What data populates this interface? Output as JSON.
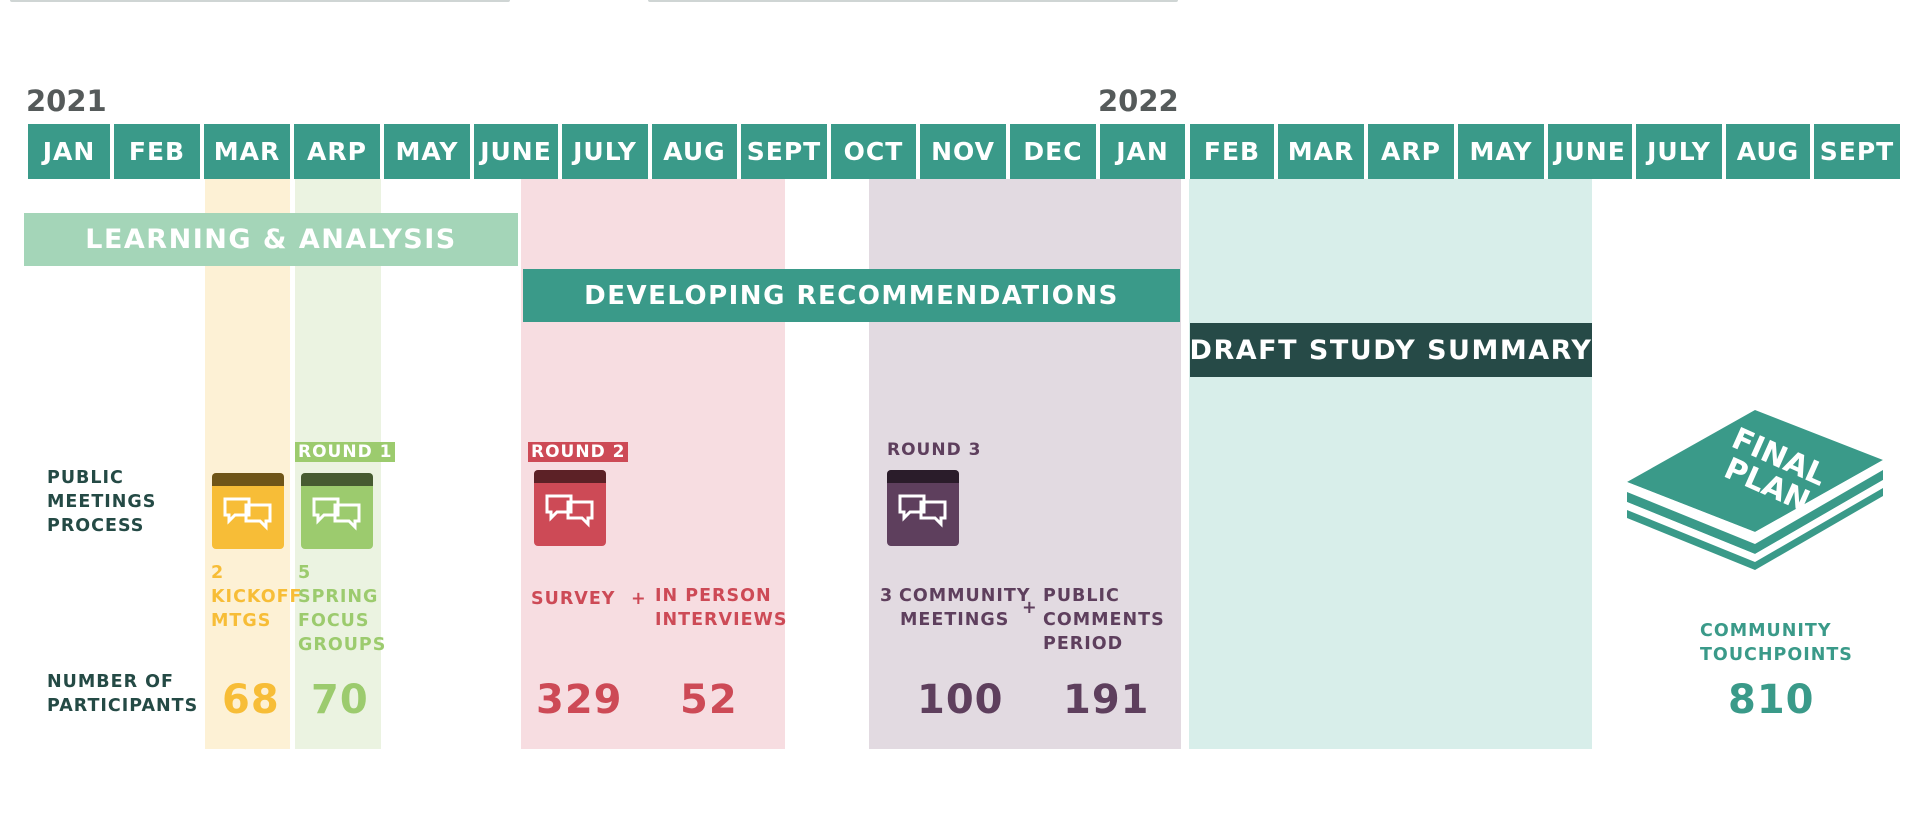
{
  "years": {
    "first": "2021",
    "second": "2022"
  },
  "months": [
    "JAN",
    "FEB",
    "MAR",
    "ARP",
    "MAY",
    "JUNE",
    "JULY",
    "AUG",
    "SEPT",
    "OCT",
    "NOV",
    "DEC",
    "JAN",
    "FEB",
    "MAR",
    "ARP",
    "MAY",
    "JUNE",
    "JULY",
    "AUG",
    "SEPT"
  ],
  "phases": {
    "learning": "LEARNING & ANALYSIS",
    "developing": "DEVELOPING RECOMMENDATIONS",
    "draft": "DRAFT STUDY SUMMARY"
  },
  "row_labels": {
    "process": [
      "PUBLIC",
      "MEETINGS",
      "PROCESS"
    ],
    "participants": [
      "NUMBER OF",
      "PARTICIPANTS"
    ]
  },
  "rounds": {
    "round1": "ROUND 1",
    "round2": "ROUND 2",
    "round3": "ROUND 3"
  },
  "events": {
    "kickoff": {
      "lines": [
        "2",
        "KICKOFF",
        "MTGS"
      ],
      "value": "68"
    },
    "spring": {
      "lines": [
        "5",
        "SPRING",
        "FOCUS",
        "GROUPS"
      ],
      "value": "70"
    },
    "survey": {
      "label": "SURVEY",
      "value": "329"
    },
    "interviews": {
      "plus": "+",
      "lines": [
        "IN PERSON",
        "INTERVIEWS"
      ],
      "value": "52"
    },
    "community_meetings": {
      "count": "3",
      "lines": [
        "COMMUNITY",
        "MEETINGS"
      ],
      "value": "100"
    },
    "public_comments": {
      "plus": "+",
      "lines": [
        "PUBLIC",
        "COMMENTS",
        "PERIOD"
      ],
      "value": "191"
    }
  },
  "final_plan": {
    "book_title_line1": "FINAL",
    "book_title_line2": "PLAN",
    "caption": [
      "COMMUNITY",
      "TOUCHPOINTS"
    ],
    "total": "810"
  },
  "colors": {
    "teal": "#3a9a89",
    "learning": "#a4d5b8",
    "draft": "#264a47",
    "yellow": "#f7bd37",
    "green": "#9ccb6e",
    "red": "#cd4a56",
    "purple": "#5e3f5d"
  },
  "icons": {
    "calendar": "calendar-chat-icon",
    "book": "final-plan-book-icon"
  }
}
